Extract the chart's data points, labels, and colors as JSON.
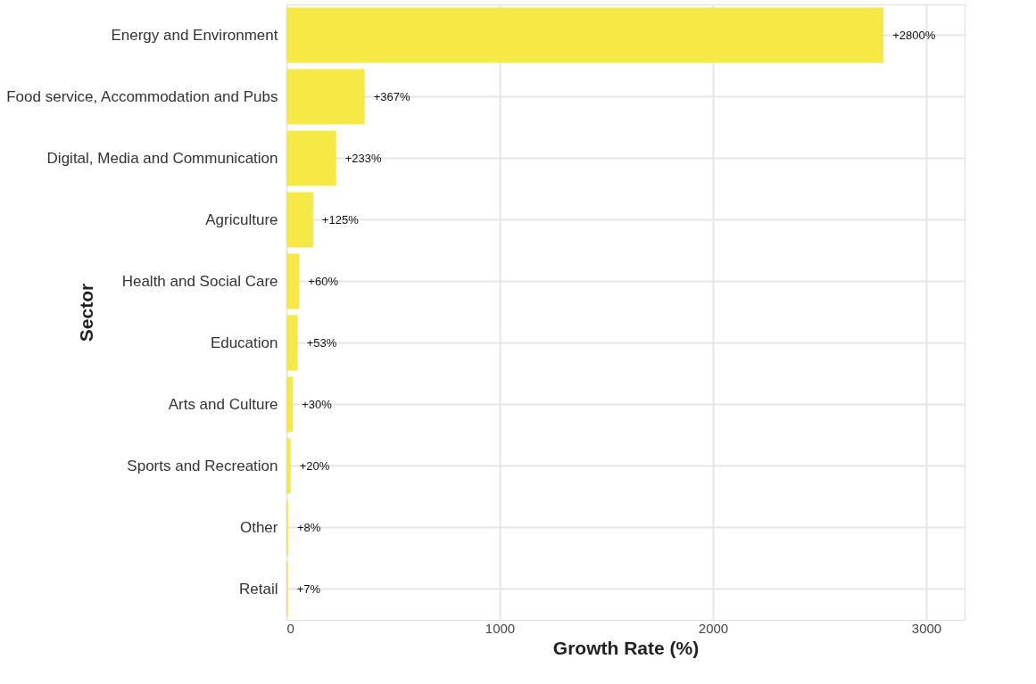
{
  "chart_data": {
    "type": "bar",
    "orientation": "horizontal",
    "xlabel": "Growth Rate (%)",
    "ylabel": "Sector",
    "categories": [
      "Energy and Environment",
      "Food service, Accommodation and Pubs",
      "Digital, Media and Communication",
      "Agriculture",
      "Health and Social Care",
      "Education",
      "Arts and Culture",
      "Sports and Recreation",
      "Other",
      "Retail"
    ],
    "values": [
      2800,
      367,
      233,
      125,
      60,
      53,
      30,
      20,
      8,
      7
    ],
    "value_labels": [
      "+2800%",
      "+367%",
      "+233%",
      "+125%",
      "+60%",
      "+53%",
      "+30%",
      "+20%",
      "+8%",
      "+7%"
    ],
    "color": "#f5e83c",
    "xlim": [
      0,
      3180
    ],
    "xticks": [
      0,
      1000,
      2000,
      3000
    ],
    "grid": true
  }
}
